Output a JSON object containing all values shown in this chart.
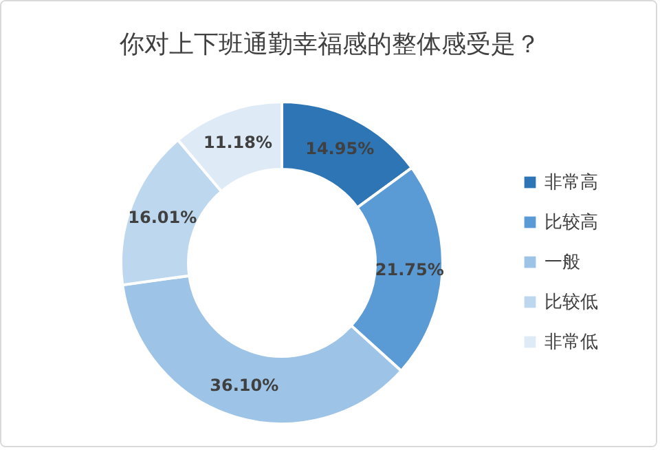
{
  "chart_data": {
    "type": "donut",
    "title": "你对上下班通勤幸福感的整体感受是？",
    "categories": [
      "非常高",
      "比较高",
      "一般",
      "比较低",
      "非常低"
    ],
    "values": [
      14.95,
      21.75,
      36.1,
      16.01,
      11.18
    ],
    "value_labels": [
      "14.95%",
      "21.75%",
      "36.10%",
      "16.01%",
      "11.18%"
    ],
    "colors": [
      "#2e75b6",
      "#5b9bd5",
      "#9dc3e6",
      "#bdd7ee",
      "#deebf7"
    ],
    "legend": "right"
  }
}
